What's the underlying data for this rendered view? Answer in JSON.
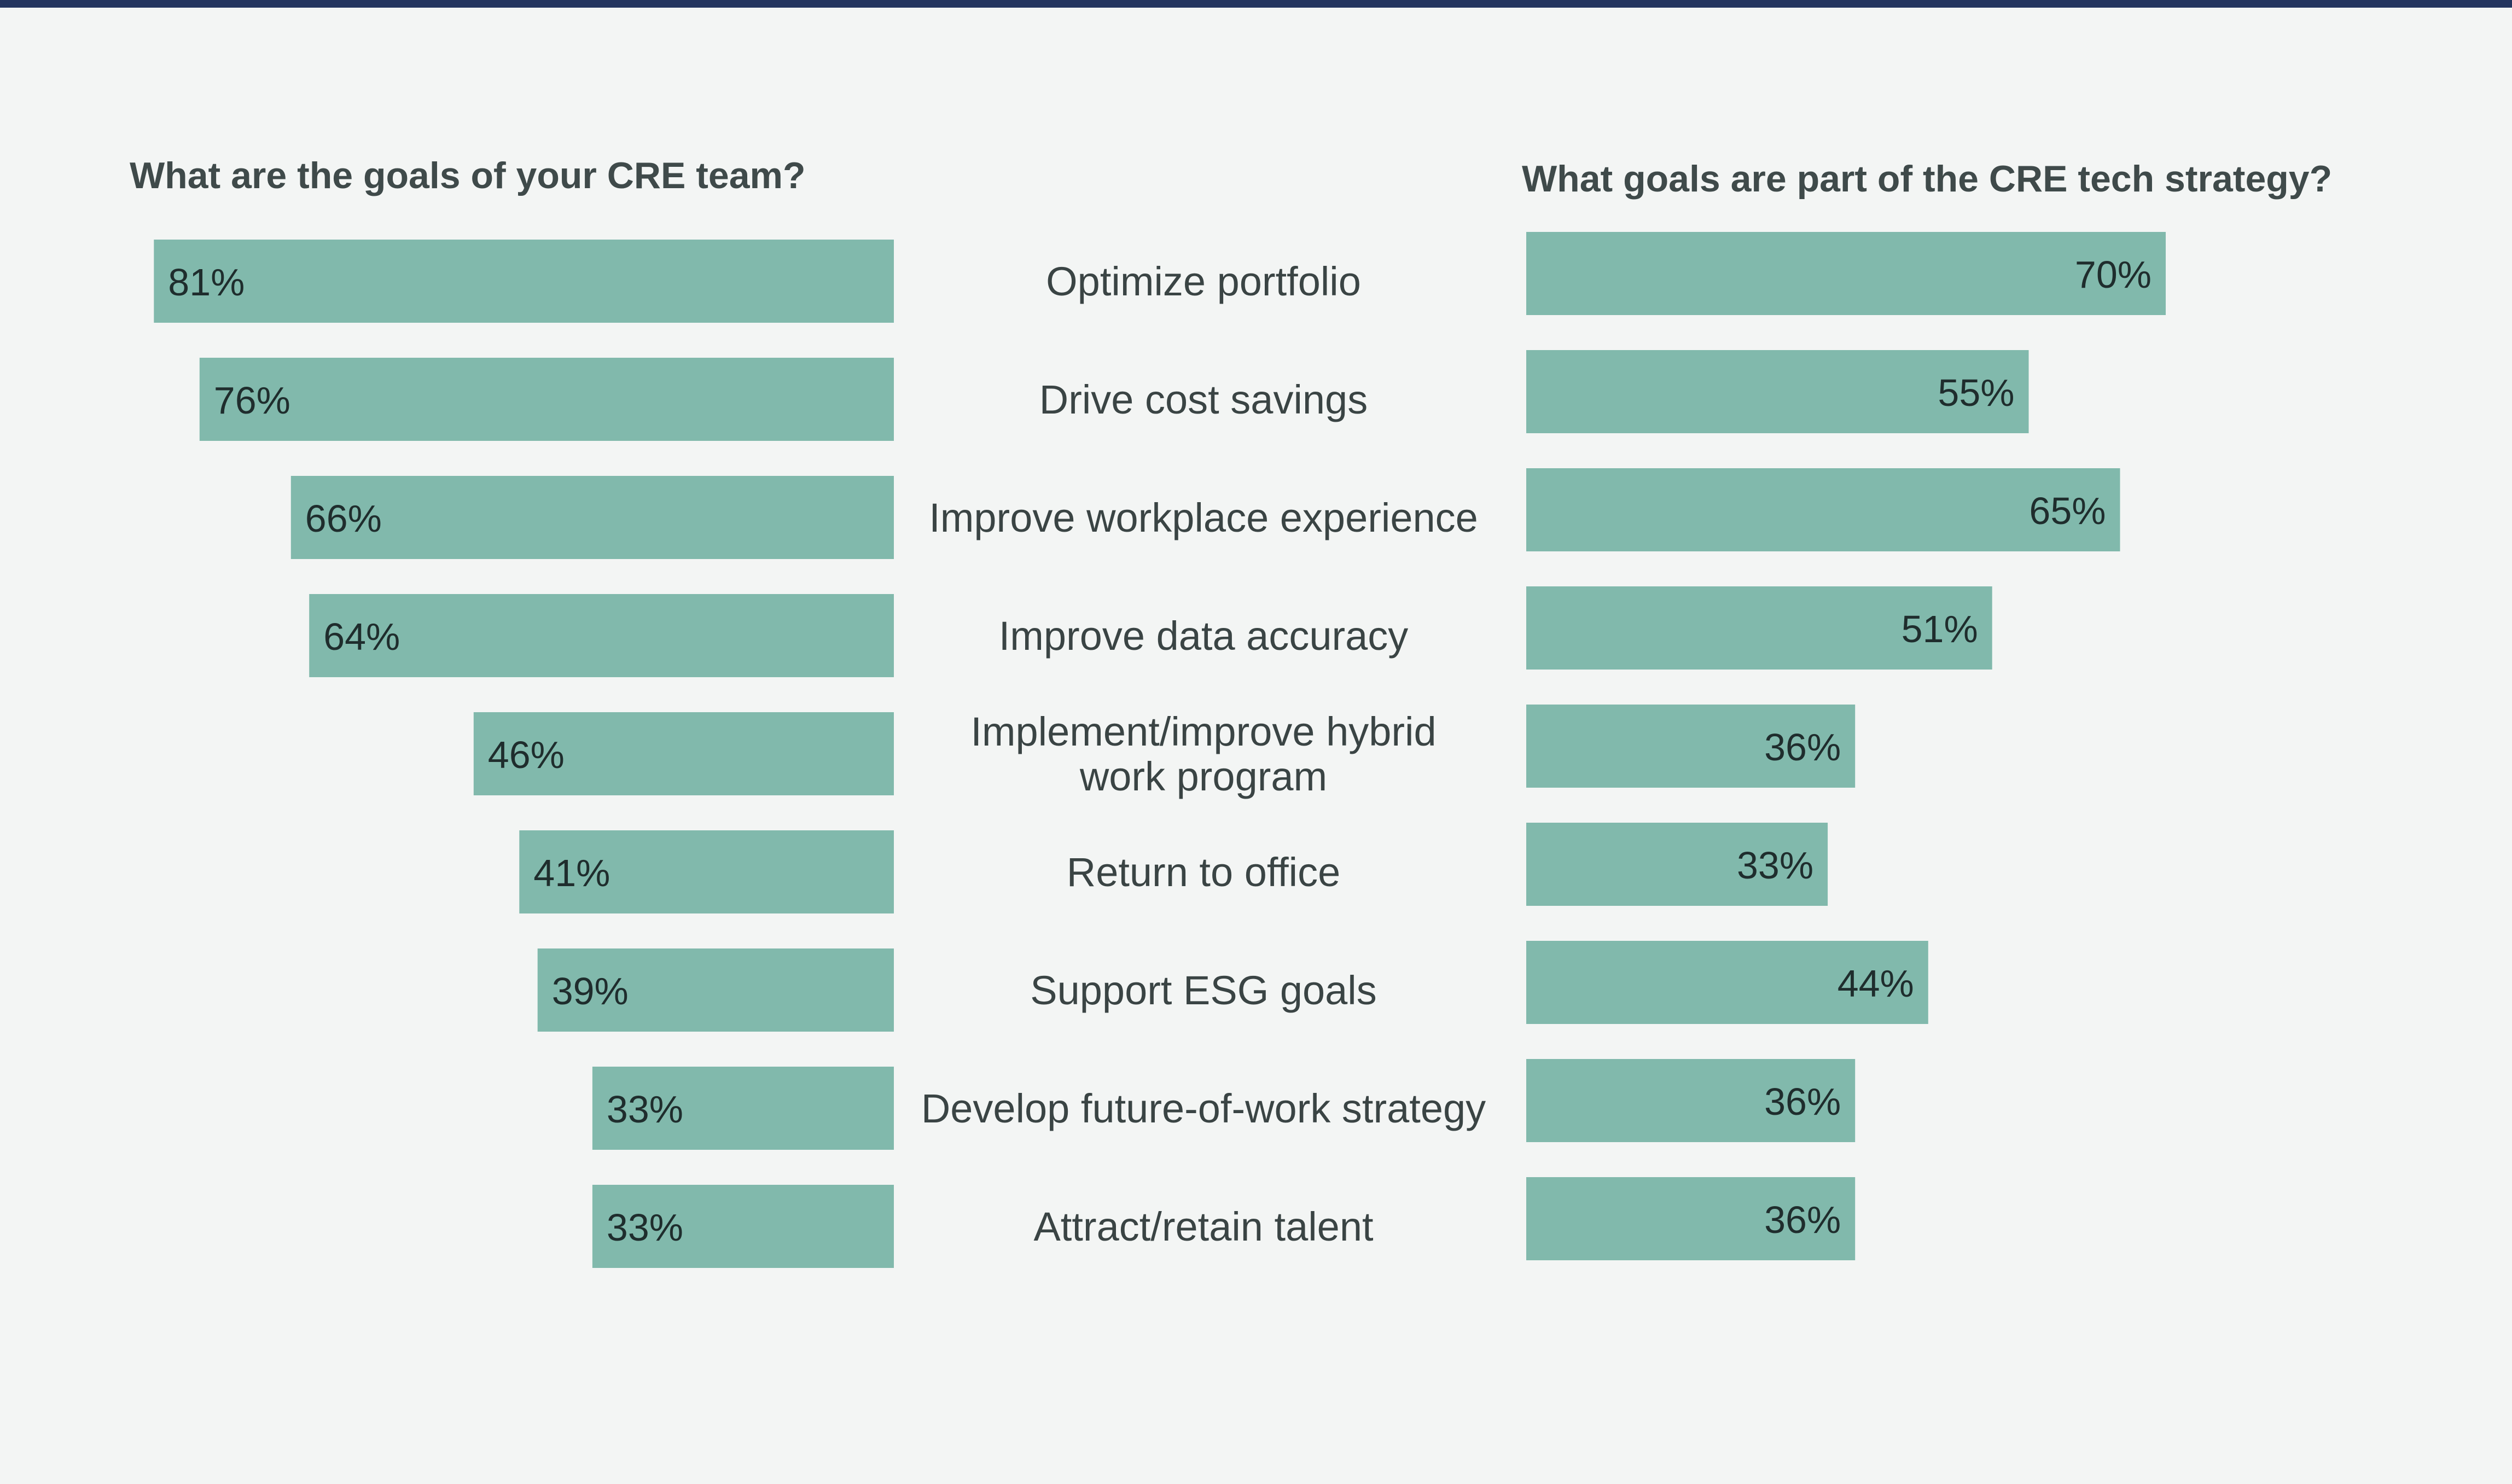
{
  "colors": {
    "bar": "#81b9ac",
    "background": "#f3f5f4",
    "top_rule": "#24355f"
  },
  "chart_data": {
    "type": "bar",
    "title_left": "What are the goals of your CRE team?",
    "title_right": "What goals are part of the CRE tech strategy?",
    "categories": [
      "Optimize portfolio",
      "Drive cost savings",
      "Improve workplace experience",
      "Improve data accuracy",
      "Implement/improve hybrid work program",
      "Return to office",
      "Support ESG goals",
      "Develop future-of-work strategy",
      "Attract/retain talent"
    ],
    "category_lines": [
      [
        "Optimize portfolio"
      ],
      [
        "Drive cost savings"
      ],
      [
        "Improve workplace experience"
      ],
      [
        "Improve data accuracy"
      ],
      [
        "Implement/improve hybrid",
        "work program"
      ],
      [
        "Return to office"
      ],
      [
        "Support ESG goals"
      ],
      [
        "Develop future-of-work strategy"
      ],
      [
        "Attract/retain talent"
      ]
    ],
    "series": [
      {
        "name": "What are the goals of your CRE team?",
        "values": [
          81,
          76,
          66,
          64,
          46,
          41,
          39,
          33,
          33
        ],
        "labels": [
          "81%",
          "76%",
          "66%",
          "64%",
          "46%",
          "41%",
          "39%",
          "33%",
          "33%"
        ]
      },
      {
        "name": "What goals are part of the CRE tech strategy?",
        "values": [
          70,
          55,
          65,
          51,
          36,
          33,
          44,
          36,
          36
        ],
        "labels": [
          "70%",
          "55%",
          "65%",
          "51%",
          "36%",
          "33%",
          "44%",
          "36%",
          "36%"
        ]
      }
    ],
    "unit": "%",
    "xlim": [
      0,
      100
    ]
  }
}
